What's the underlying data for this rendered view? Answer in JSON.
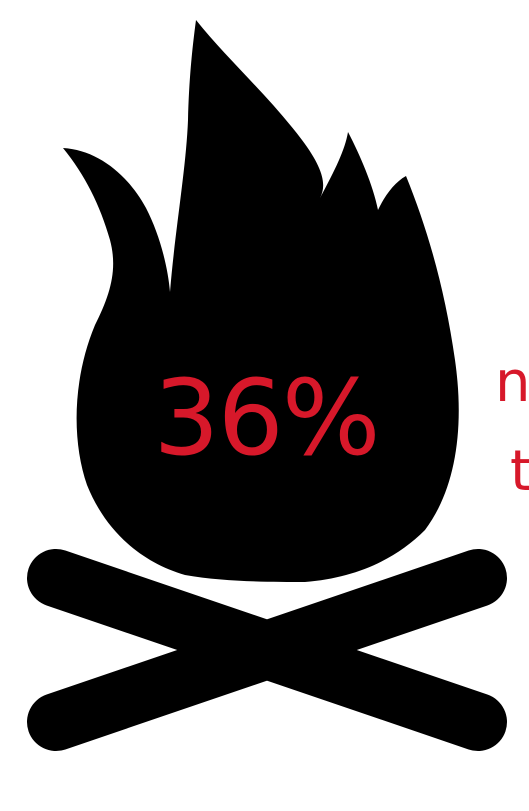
{
  "fragments": {
    "line1": "n",
    "line2": "t."
  },
  "stat": {
    "value": "36%"
  },
  "colors": {
    "accent": "#d7182a",
    "icon": "#000000",
    "background": "#ffffff"
  },
  "icon": {
    "name": "campfire-icon"
  }
}
